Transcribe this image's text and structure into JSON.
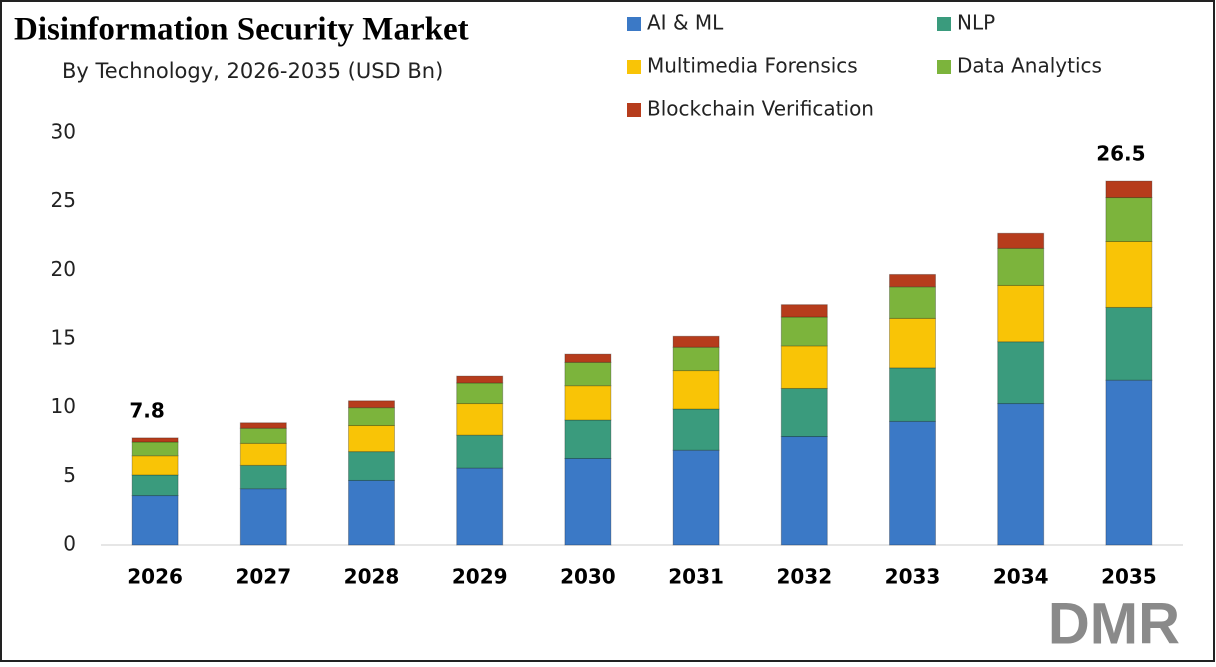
{
  "chart_data": {
    "type": "stacked_bar",
    "title": "Disinformation Security Market",
    "subtitle": "By Technology, 2026-2035 (USD Bn)",
    "categories": [
      "2026",
      "2027",
      "2028",
      "2029",
      "2030",
      "2031",
      "2032",
      "2033",
      "2034",
      "2035"
    ],
    "series": [
      {
        "name": "AI & ML",
        "color": "#3b79c6",
        "values": [
          3.6,
          4.1,
          4.7,
          5.6,
          6.3,
          6.9,
          7.9,
          9.0,
          10.3,
          12.0
        ]
      },
      {
        "name": "NLP",
        "color": "#3a9b7d",
        "values": [
          1.5,
          1.7,
          2.1,
          2.4,
          2.8,
          3.0,
          3.5,
          3.9,
          4.5,
          5.3
        ]
      },
      {
        "name": "Multimedia Forensics",
        "color": "#f9c406",
        "values": [
          1.4,
          1.6,
          1.9,
          2.3,
          2.5,
          2.8,
          3.1,
          3.6,
          4.1,
          4.8
        ]
      },
      {
        "name": "Data Analytics",
        "color": "#7cb43c",
        "values": [
          1.0,
          1.1,
          1.3,
          1.5,
          1.7,
          1.7,
          2.1,
          2.3,
          2.7,
          3.2
        ]
      },
      {
        "name": "Blockchain Verification",
        "color": "#b63c1c",
        "values": [
          0.3,
          0.4,
          0.5,
          0.5,
          0.6,
          0.8,
          0.9,
          0.9,
          1.1,
          1.2
        ]
      }
    ],
    "total_labels": [
      7.8,
      null,
      null,
      null,
      null,
      null,
      null,
      null,
      null,
      26.5
    ],
    "ylim": [
      0,
      30
    ],
    "yticks": [
      0,
      5,
      10,
      15,
      20,
      25,
      30
    ],
    "grid": false,
    "logo": "DMR"
  }
}
